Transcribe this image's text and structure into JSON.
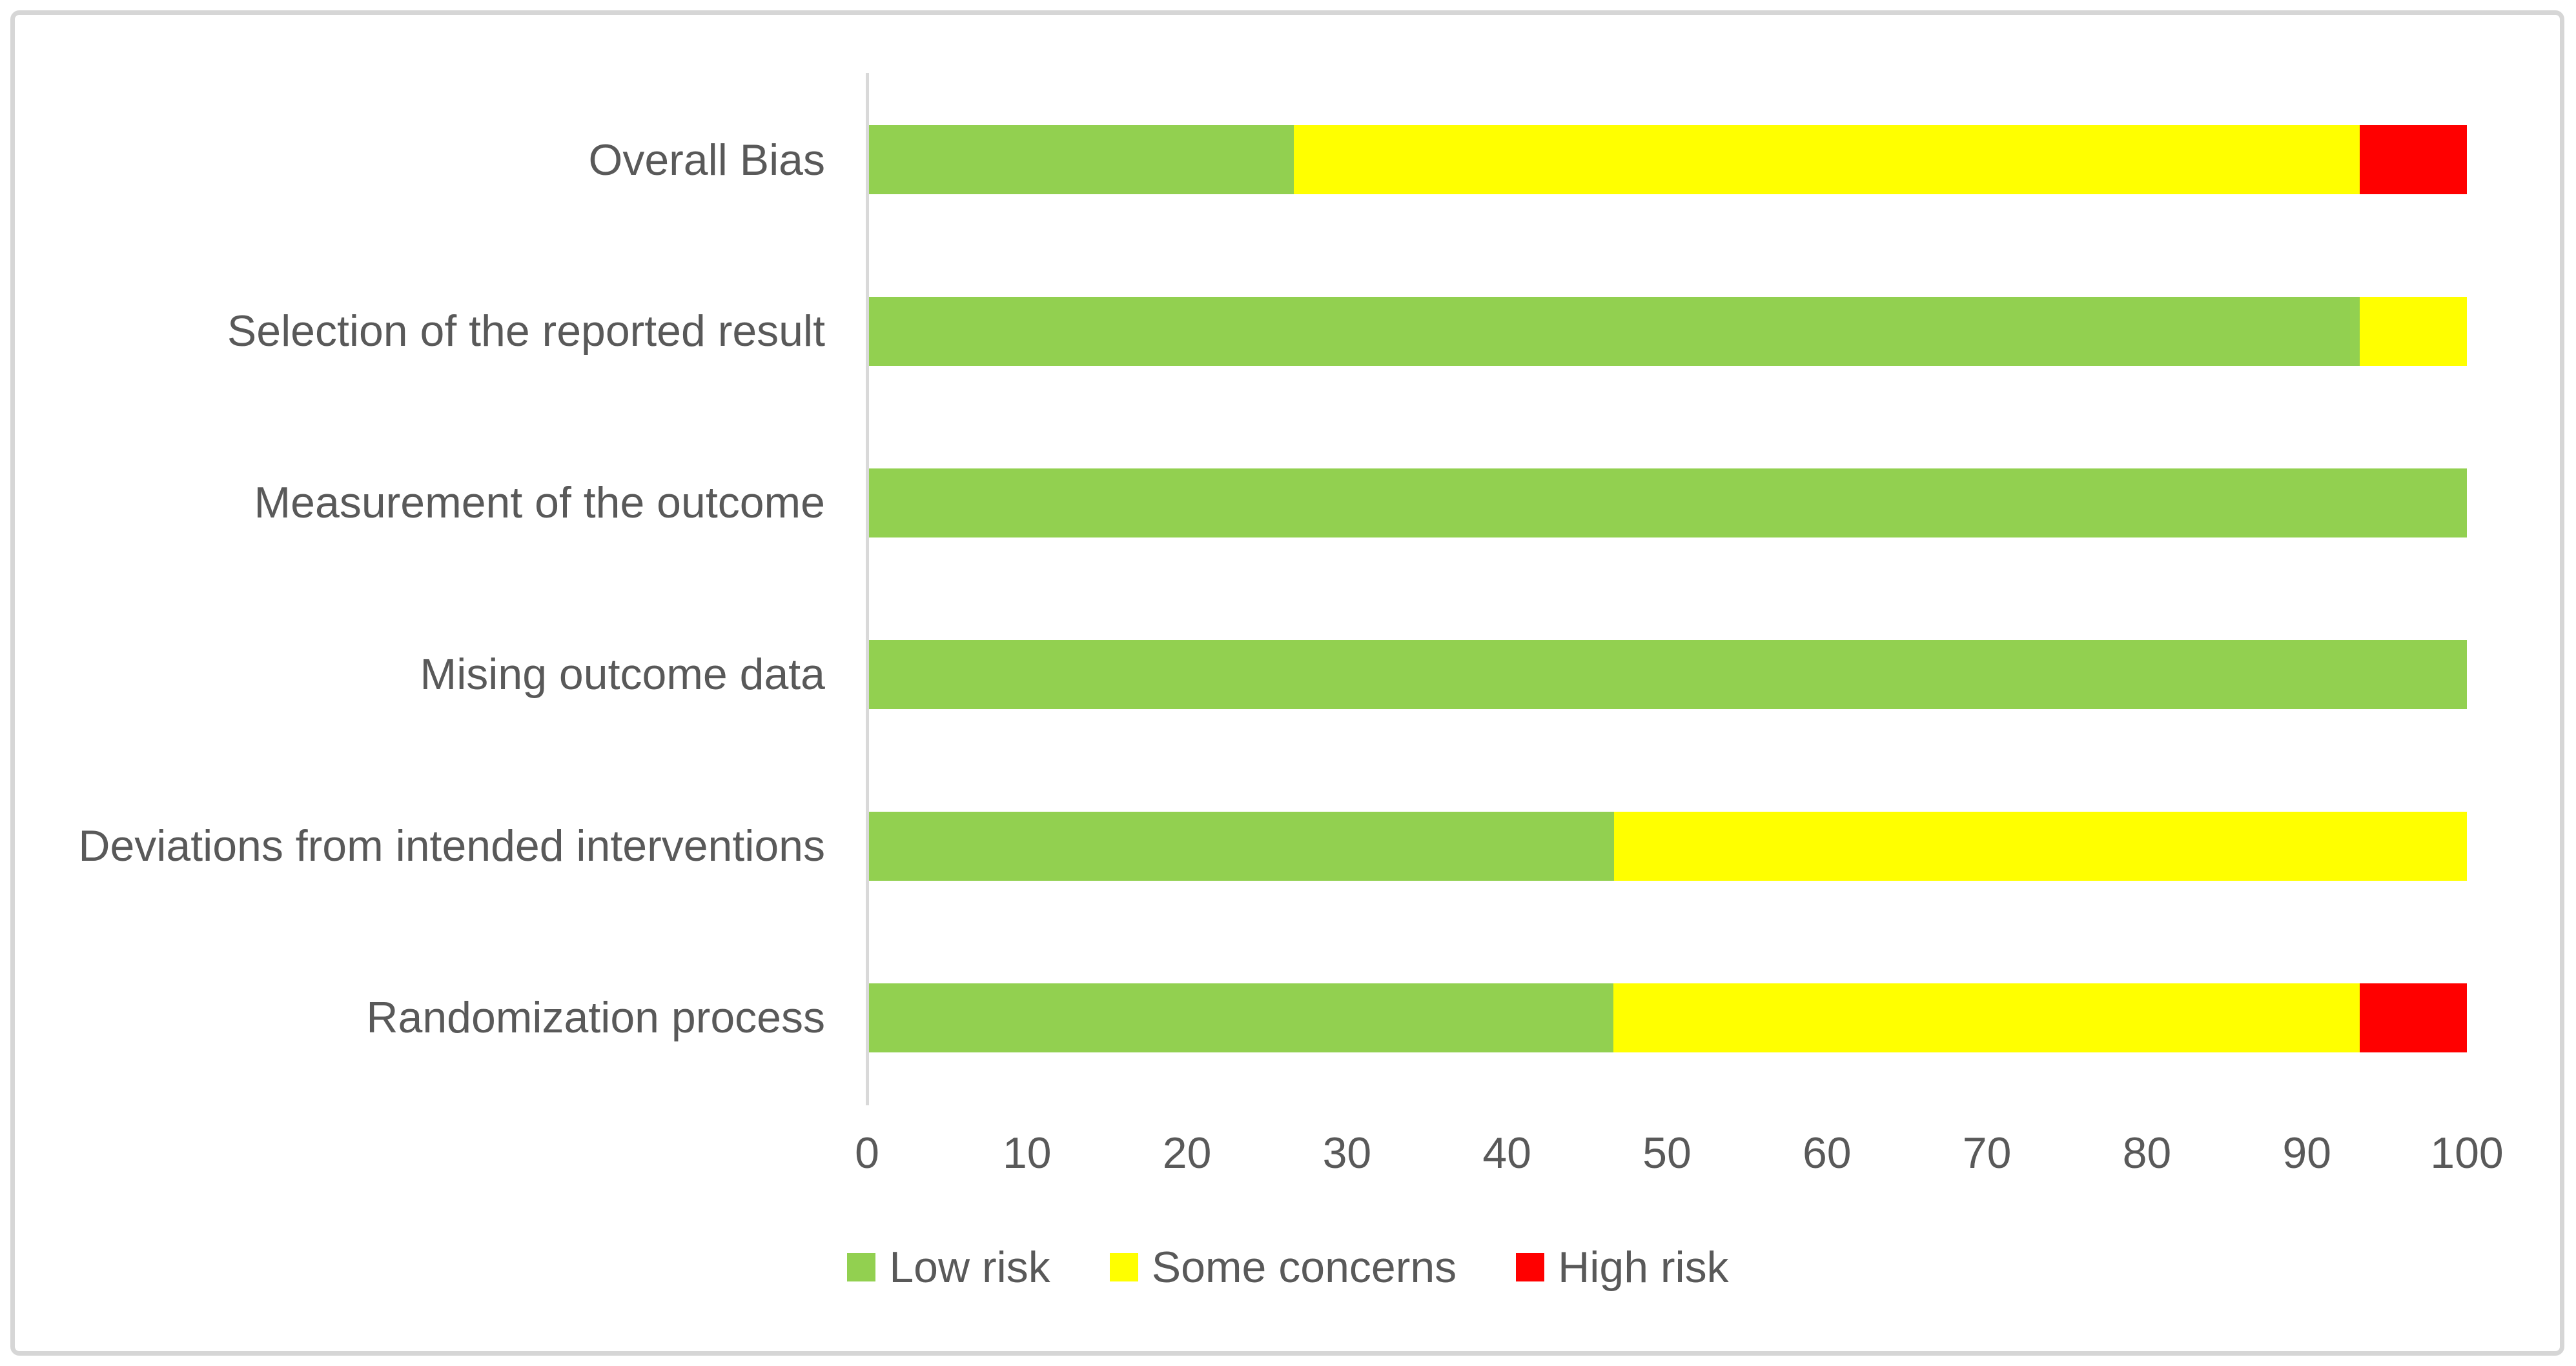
{
  "chart_data": {
    "type": "bar",
    "orientation": "horizontal-stacked",
    "title": "",
    "xlabel": "",
    "ylabel": "",
    "xlim": [
      0,
      100
    ],
    "x_ticks": [
      0,
      10,
      20,
      30,
      40,
      50,
      60,
      70,
      80,
      90,
      100
    ],
    "gridlines": false,
    "legend_position": "bottom",
    "categories": [
      "Overall Bias",
      "Selection of the reported result",
      "Measurement of the outcome",
      "Mising outcome data",
      "Deviations from intended interventions",
      "Randomization process"
    ],
    "series": [
      {
        "name": "Low risk",
        "color": "#92D050",
        "values": [
          26.7,
          93.3,
          100.0,
          100.0,
          46.7,
          46.7
        ]
      },
      {
        "name": "Some concerns",
        "color": "#FFFF00",
        "values": [
          66.7,
          6.7,
          0.0,
          0.0,
          53.3,
          46.7
        ]
      },
      {
        "name": "High risk",
        "color": "#FF0000",
        "values": [
          6.7,
          0.0,
          0.0,
          0.0,
          0.0,
          6.7
        ]
      }
    ]
  },
  "colors": {
    "text": "#595959",
    "axis_line": "#d9d9d9",
    "border": "#d6d6d6",
    "background": "#ffffff"
  }
}
